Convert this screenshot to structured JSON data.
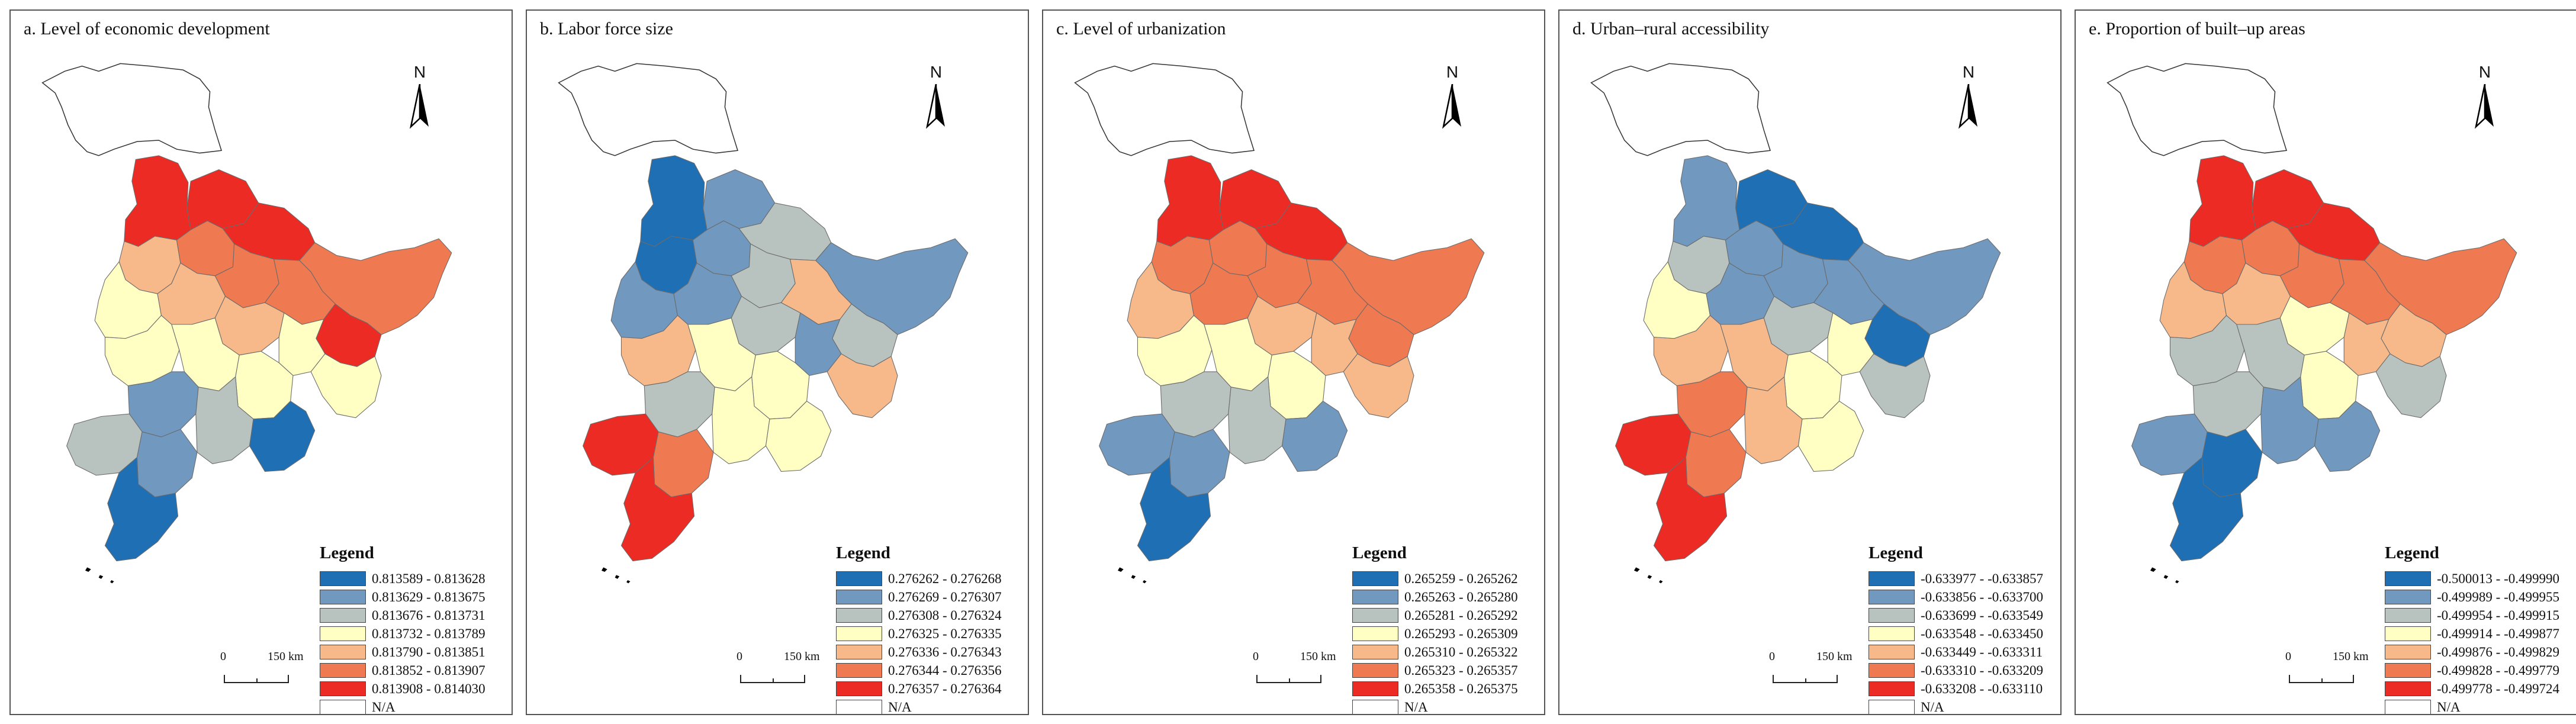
{
  "map_colors": [
    "#1f6fb4",
    "#7198bf",
    "#b8c3bf",
    "#ffffc4",
    "#f7b98a",
    "#ef7950",
    "#ec2b25"
  ],
  "na_color": "#ffffff",
  "legend_title": "Legend",
  "na_label": "N/A",
  "north_label": "N",
  "scale": {
    "start": "0",
    "end": "150 km"
  },
  "panels": [
    {
      "title": "a. Level of economic development",
      "ranges": [
        "0.813589 - 0.813628",
        "0.813629 - 0.813675",
        "0.813676 - 0.813731",
        "0.813732 - 0.813789",
        "0.813790 - 0.813851",
        "0.813852 - 0.813907",
        "0.813908 - 0.814030"
      ],
      "region_classes": [
        6,
        6,
        6,
        5,
        4,
        5,
        5,
        5,
        6,
        3,
        4,
        4,
        3,
        3,
        3,
        3,
        3,
        1,
        2,
        0,
        2,
        1,
        0
      ]
    },
    {
      "title": "b. Labor force size",
      "ranges": [
        "0.276262 - 0.276268",
        "0.276269 - 0.276307",
        "0.276308 - 0.276324",
        "0.276325 - 0.276335",
        "0.276336 - 0.276343",
        "0.276344 - 0.276356",
        "0.276357 - 0.276364"
      ],
      "region_classes": [
        0,
        1,
        2,
        1,
        0,
        1,
        2,
        4,
        2,
        1,
        1,
        2,
        1,
        4,
        3,
        3,
        4,
        2,
        3,
        3,
        6,
        5,
        6
      ]
    },
    {
      "title": "c. Level of urbanization",
      "ranges": [
        "0.265259 - 0.265262",
        "0.265263 - 0.265280",
        "0.265281 - 0.265292",
        "0.265293 - 0.265309",
        "0.265310 - 0.265322",
        "0.265323 - 0.265357",
        "0.265358 - 0.265375"
      ],
      "region_classes": [
        6,
        6,
        6,
        5,
        5,
        5,
        5,
        5,
        5,
        4,
        5,
        4,
        4,
        4,
        3,
        3,
        3,
        2,
        2,
        1,
        1,
        1,
        0
      ]
    },
    {
      "title": "d. Urban–rural accessibility",
      "ranges": [
        "-0.633977 - -0.633857",
        "-0.633856 - -0.633700",
        "-0.633699 - -0.633549",
        "-0.633548 - -0.633450",
        "-0.633449 - -0.633311",
        "-0.633310 - -0.633209",
        "-0.633208 - -0.633110"
      ],
      "region_classes": [
        1,
        0,
        0,
        1,
        2,
        1,
        1,
        1,
        0,
        3,
        1,
        2,
        3,
        2,
        4,
        3,
        4,
        5,
        4,
        3,
        6,
        5,
        6
      ]
    },
    {
      "title": "e. Proportion of built–up areas",
      "ranges": [
        "-0.500013 - -0.499990",
        "-0.499989 - -0.499955",
        "-0.499954 - -0.499915",
        "-0.499914 - -0.499877",
        "-0.499876 - -0.499829",
        "-0.499828 - -0.499779",
        "-0.499778 - -0.499724"
      ],
      "region_classes": [
        6,
        6,
        6,
        5,
        5,
        5,
        5,
        5,
        4,
        4,
        4,
        3,
        4,
        2,
        2,
        3,
        2,
        2,
        1,
        1,
        1,
        0,
        0
      ]
    }
  ]
}
